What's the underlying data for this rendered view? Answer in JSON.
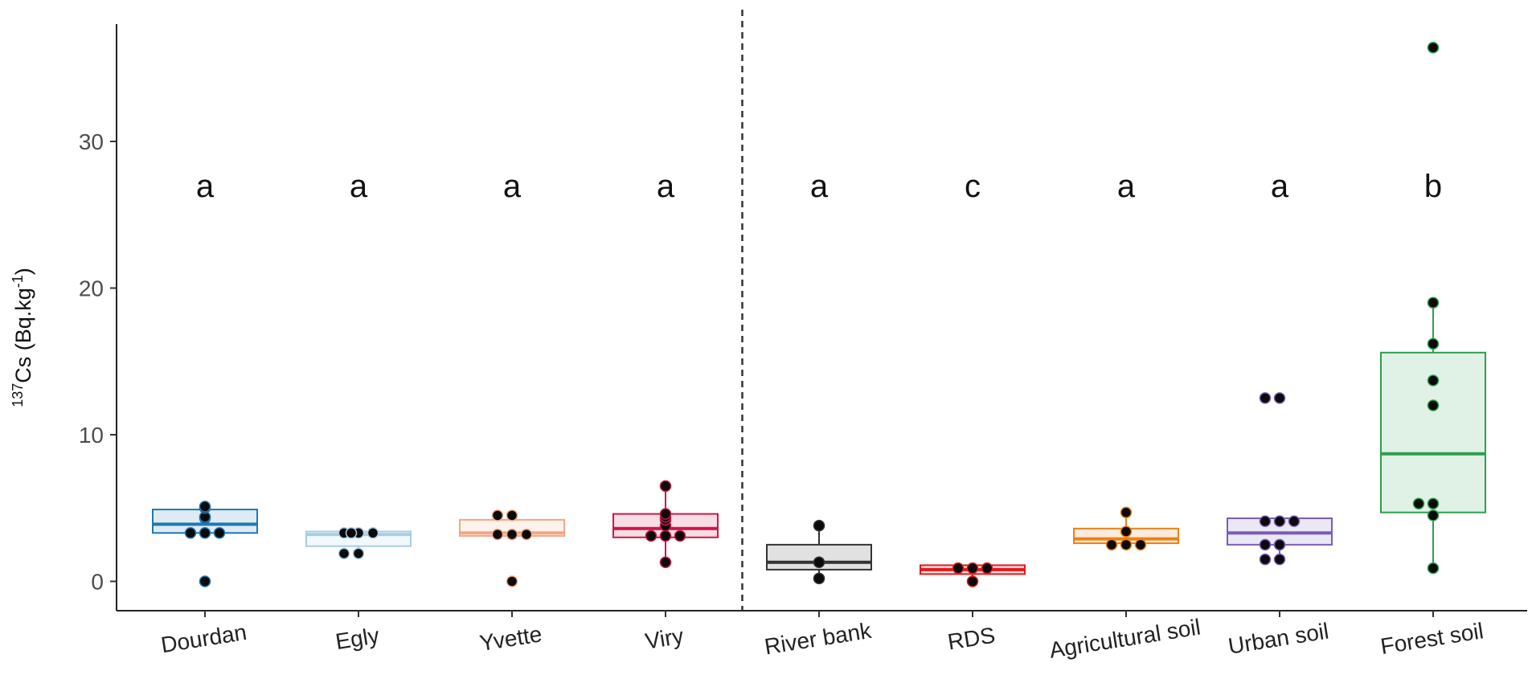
{
  "chart_data": {
    "type": "box",
    "ylabel": {
      "superscript": "137",
      "main": "Cs (Bq.kg",
      "unit_superscript": "-1",
      "close": ")"
    },
    "ylim": [
      -2,
      38
    ],
    "yticks": [
      0,
      10,
      20,
      30
    ],
    "grid": false,
    "separator_after_index": 3,
    "groups": [
      {
        "label": "Dourdan",
        "color": "#1f78b4",
        "letter": "a",
        "box": {
          "q1": 3.3,
          "median": 3.9,
          "q3": 4.9,
          "whisker_low": 3.3,
          "whisker_high": 5.1
        },
        "points": [
          0.0,
          3.3,
          3.3,
          3.3,
          4.3,
          4.4,
          5.0,
          5.1
        ]
      },
      {
        "label": "Egly",
        "color": "#a6cee3",
        "letter": "a",
        "box": {
          "q1": 2.4,
          "median": 3.2,
          "q3": 3.4,
          "whisker_low": 1.9,
          "whisker_high": 3.4
        },
        "points": [
          1.9,
          1.9,
          3.3,
          3.3,
          3.3,
          3.3
        ]
      },
      {
        "label": "Yvette",
        "color": "#f4a582",
        "letter": "a",
        "box": {
          "q1": 3.1,
          "median": 3.3,
          "q3": 4.2,
          "whisker_low": 3.1,
          "whisker_high": 4.5
        },
        "points": [
          0.0,
          3.2,
          3.2,
          3.2,
          4.5,
          4.5
        ]
      },
      {
        "label": "Viry",
        "color": "#c9184a",
        "letter": "a",
        "box": {
          "q1": 3.0,
          "median": 3.6,
          "q3": 4.6,
          "whisker_low": 1.3,
          "whisker_high": 6.5
        },
        "points": [
          1.3,
          3.1,
          3.1,
          3.1,
          3.8,
          4.2,
          4.4,
          4.6,
          6.5
        ]
      },
      {
        "label": "River bank",
        "color": "#333333",
        "letter": "a",
        "box": {
          "q1": 0.8,
          "median": 1.3,
          "q3": 2.5,
          "whisker_low": 0.2,
          "whisker_high": 3.8
        },
        "points": [
          0.2,
          1.3,
          3.8
        ]
      },
      {
        "label": "RDS",
        "color": "#e31a1c",
        "letter": "c",
        "box": {
          "q1": 0.5,
          "median": 0.8,
          "q3": 1.1,
          "whisker_low": 0.0,
          "whisker_high": 1.1
        },
        "points": [
          0.0,
          0.9,
          0.9,
          0.9
        ]
      },
      {
        "label": "Agricultural soil",
        "color": "#f07f13",
        "letter": "a",
        "box": {
          "q1": 2.6,
          "median": 2.9,
          "q3": 3.6,
          "whisker_low": 2.5,
          "whisker_high": 4.7
        },
        "points": [
          2.5,
          2.5,
          2.5,
          3.4,
          4.7
        ]
      },
      {
        "label": "Urban soil",
        "color": "#7b5cb8",
        "letter": "a",
        "box": {
          "q1": 2.5,
          "median": 3.3,
          "q3": 4.3,
          "whisker_low": 1.5,
          "whisker_high": 4.3
        },
        "points": [
          1.5,
          1.5,
          2.5,
          2.5,
          4.1,
          4.1,
          4.1,
          12.5,
          12.5
        ]
      },
      {
        "label": "Forest soil",
        "color": "#2e9e4f",
        "letter": "b",
        "box": {
          "q1": 4.7,
          "median": 8.7,
          "q3": 15.6,
          "whisker_low": 0.9,
          "whisker_high": 19.0
        },
        "points": [
          0.9,
          4.5,
          5.3,
          5.3,
          12.0,
          13.7,
          16.2,
          19.0,
          36.4
        ]
      }
    ]
  }
}
